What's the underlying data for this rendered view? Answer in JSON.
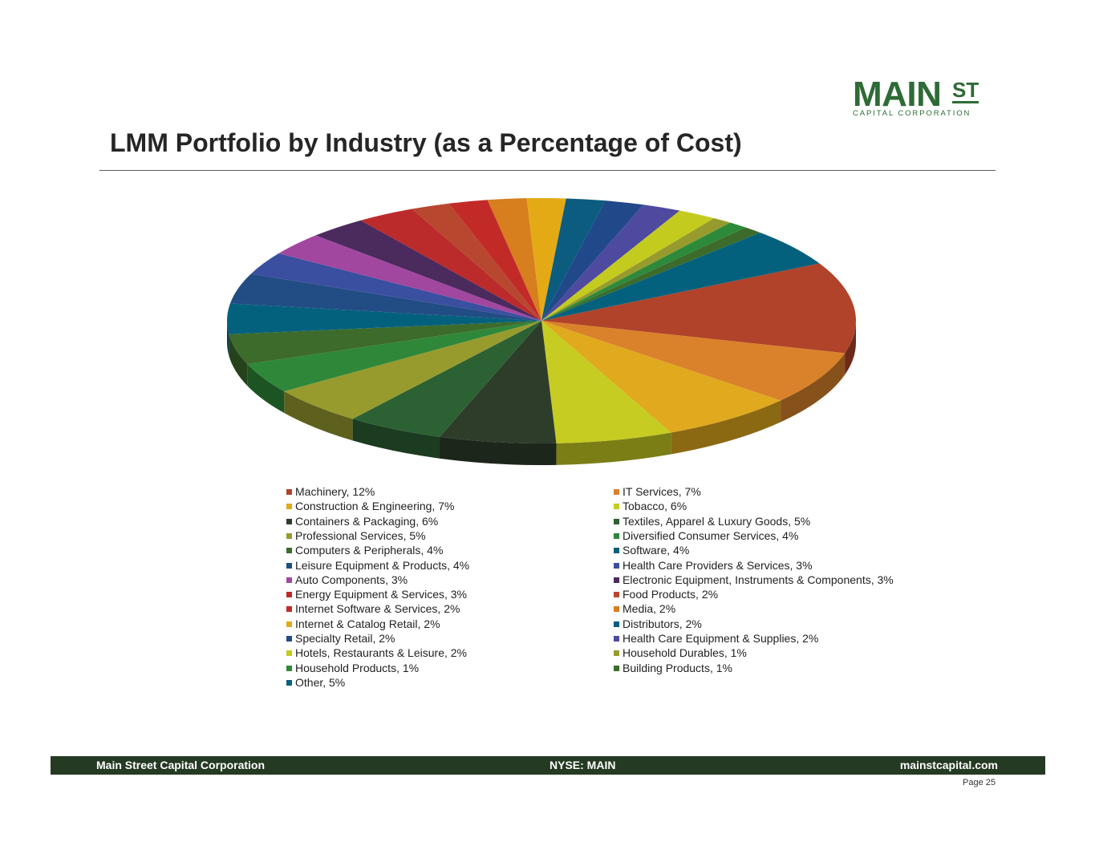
{
  "logo": {
    "main": "MAIN",
    "st": "ST",
    "subtitle": "CAPITAL CORPORATION"
  },
  "title": "LMM Portfolio by Industry (as a Percentage of Cost)",
  "chart_data": {
    "type": "pie",
    "title": "LMM Portfolio by Industry (as a Percentage of Cost)",
    "categories": [
      "Machinery",
      "IT Services",
      "Construction & Engineering",
      "Tobacco",
      "Containers & Packaging",
      "Textiles, Apparel & Luxury Goods",
      "Professional Services",
      "Diversified Consumer Services",
      "Computers & Peripherals",
      "Software",
      "Leisure Equipment & Products",
      "Health Care Providers & Services",
      "Auto Components",
      "Electronic Equipment, Instruments & Components",
      "Energy Equipment & Services",
      "Food Products",
      "Internet Software & Services",
      "Media",
      "Internet & Catalog Retail",
      "Distributors",
      "Specialty Retail",
      "Health Care Equipment & Supplies",
      "Hotels, Restaurants & Leisure",
      "Household Durables",
      "Household Products",
      "Building Products",
      "Other"
    ],
    "values": [
      12,
      7,
      7,
      6,
      6,
      5,
      5,
      4,
      4,
      4,
      4,
      3,
      3,
      3,
      3,
      2,
      2,
      2,
      2,
      2,
      2,
      2,
      2,
      1,
      1,
      1,
      5
    ],
    "labels": [
      "Machinery, 12%",
      "IT Services, 7%",
      "Construction & Engineering, 7%",
      "Tobacco, 6%",
      "Containers & Packaging, 6%",
      "Textiles, Apparel & Luxury Goods, 5%",
      "Professional Services, 5%",
      "Diversified Consumer Services, 4%",
      "Computers & Peripherals, 4%",
      "Software, 4%",
      "Leisure Equipment & Products, 4%",
      "Health Care Providers & Services, 3%",
      "Auto Components, 3%",
      "Electronic Equipment, Instruments & Components, 3%",
      "Energy Equipment & Services, 3%",
      "Food Products, 2%",
      "Internet Software & Services, 2%",
      "Media, 2%",
      "Internet & Catalog Retail, 2%",
      "Distributors, 2%",
      "Specialty Retail, 2%",
      "Health Care Equipment & Supplies, 2%",
      "Hotels, Restaurants & Leisure, 2%",
      "Household Durables, 1%",
      "Household Products, 1%",
      "Building Products, 1%",
      "Other, 5%"
    ],
    "colors": [
      "#b0432a",
      "#d9822b",
      "#e0a91e",
      "#c6cc22",
      "#2e3d2a",
      "#2c6133",
      "#979b2e",
      "#2f873a",
      "#3c6b2c",
      "#04617e",
      "#224d84",
      "#3a4fa0",
      "#a2479f",
      "#4b2a5e",
      "#bc2b2b",
      "#b8472f",
      "#c22a28",
      "#d77e1f",
      "#e3aa16",
      "#0b5c7f",
      "#21498a",
      "#4e4aa0",
      "#c3cb1f",
      "#979b2e",
      "#2d8a3a",
      "#3c6b2c",
      "#04617e"
    ],
    "legend_position": "bottom"
  },
  "footer": {
    "company": "Main Street Capital Corporation",
    "ticker": "NYSE: MAIN",
    "website": "mainstcapital.com"
  },
  "page": "Page  25"
}
